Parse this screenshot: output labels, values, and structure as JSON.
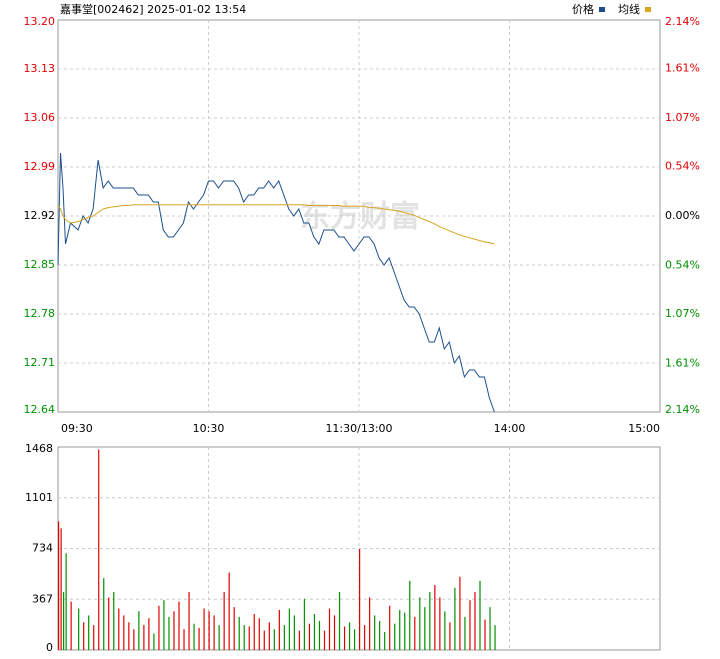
{
  "chart_data": [
    {
      "type": "line",
      "title": "嘉事堂[002462] 2025-01-02 13:54",
      "watermark": "东方财富",
      "x": [
        "09:30",
        "09:31",
        "09:32",
        "09:33",
        "09:35",
        "09:38",
        "09:40",
        "09:42",
        "09:44",
        "09:46",
        "09:48",
        "09:50",
        "09:52",
        "09:54",
        "09:56",
        "09:58",
        "10:00",
        "10:02",
        "10:04",
        "10:06",
        "10:08",
        "10:10",
        "10:12",
        "10:14",
        "10:16",
        "10:18",
        "10:20",
        "10:22",
        "10:24",
        "10:26",
        "10:28",
        "10:30",
        "10:32",
        "10:34",
        "10:36",
        "10:38",
        "10:40",
        "10:42",
        "10:44",
        "10:46",
        "10:48",
        "10:50",
        "10:52",
        "10:54",
        "10:56",
        "10:58",
        "11:00",
        "11:02",
        "11:04",
        "11:06",
        "11:08",
        "11:10",
        "11:12",
        "11:14",
        "11:16",
        "11:18",
        "11:20",
        "11:22",
        "11:24",
        "11:26",
        "11:28",
        "11:30",
        "13:02",
        "13:04",
        "13:06",
        "13:08",
        "13:10",
        "13:12",
        "13:14",
        "13:16",
        "13:18",
        "13:20",
        "13:22",
        "13:24",
        "13:26",
        "13:28",
        "13:30",
        "13:32",
        "13:34",
        "13:36",
        "13:38",
        "13:40",
        "13:42",
        "13:44",
        "13:46",
        "13:48",
        "13:50",
        "13:52",
        "13:54"
      ],
      "series": [
        {
          "name": "价格",
          "color": "#1b4f8c",
          "values": [
            12.85,
            13.01,
            12.96,
            12.88,
            12.91,
            12.9,
            12.92,
            12.91,
            12.93,
            13.0,
            12.96,
            12.97,
            12.96,
            12.96,
            12.96,
            12.96,
            12.96,
            12.95,
            12.95,
            12.95,
            12.94,
            12.94,
            12.9,
            12.89,
            12.89,
            12.9,
            12.91,
            12.94,
            12.93,
            12.94,
            12.95,
            12.97,
            12.97,
            12.96,
            12.97,
            12.97,
            12.97,
            12.96,
            12.94,
            12.95,
            12.95,
            12.96,
            12.96,
            12.97,
            12.96,
            12.97,
            12.95,
            12.93,
            12.92,
            12.93,
            12.91,
            12.91,
            12.89,
            12.88,
            12.9,
            12.9,
            12.9,
            12.89,
            12.89,
            12.88,
            12.87,
            12.88,
            12.89,
            12.89,
            12.88,
            12.86,
            12.85,
            12.86,
            12.84,
            12.82,
            12.8,
            12.79,
            12.79,
            12.78,
            12.76,
            12.74,
            12.74,
            12.76,
            12.73,
            12.74,
            12.71,
            12.72,
            12.69,
            12.7,
            12.7,
            12.69,
            12.69,
            12.66,
            12.64
          ]
        },
        {
          "name": "均线",
          "color": "#d9a520",
          "values": [
            12.935,
            12.93,
            12.92,
            12.915,
            12.91,
            12.912,
            12.915,
            12.918,
            12.92,
            12.925,
            12.93,
            12.932,
            12.933,
            12.934,
            12.935,
            12.935,
            12.936,
            12.936,
            12.936,
            12.936,
            12.936,
            12.936,
            12.936,
            12.936,
            12.936,
            12.936,
            12.936,
            12.936,
            12.936,
            12.936,
            12.936,
            12.936,
            12.936,
            12.936,
            12.936,
            12.936,
            12.936,
            12.936,
            12.936,
            12.936,
            12.936,
            12.936,
            12.936,
            12.936,
            12.936,
            12.936,
            12.936,
            12.936,
            12.936,
            12.936,
            12.936,
            12.935,
            12.935,
            12.935,
            12.935,
            12.935,
            12.935,
            12.935,
            12.934,
            12.934,
            12.934,
            12.934,
            12.934,
            12.932,
            12.932,
            12.931,
            12.93,
            12.929,
            12.928,
            12.927,
            12.925,
            12.923,
            12.921,
            12.918,
            12.915,
            12.912,
            12.909,
            12.905,
            12.902,
            12.899,
            12.896,
            12.893,
            12.891,
            12.889,
            12.887,
            12.885,
            12.883,
            12.882,
            12.88
          ]
        }
      ],
      "xlim": [
        "09:30",
        "15:00"
      ],
      "xticks": [
        "09:30",
        "10:30",
        "11:30/13:00",
        "14:00",
        "15:00"
      ],
      "ylim": [
        12.64,
        13.2
      ],
      "yticks": [
        12.64,
        12.71,
        12.78,
        12.85,
        12.92,
        12.99,
        13.06,
        13.13,
        {
          "value": 13.2,
          "label": "13.20"
        }
      ],
      "y2lim": [
        -2.14,
        2.14
      ],
      "y2ticks": [
        {
          "value": -2.14,
          "label": "2.14%"
        },
        {
          "value": -1.61,
          "label": "1.61%"
        },
        {
          "value": -1.07,
          "label": "1.07%"
        },
        {
          "value": -0.54,
          "label": "0.54%"
        },
        {
          "value": 0,
          "label": "0.00%"
        },
        {
          "value": 0.54,
          "label": "0.54%"
        },
        {
          "value": 1.07,
          "label": "1.07%"
        },
        {
          "value": 1.61,
          "label": "1.61%"
        },
        {
          "value": 2.14,
          "label": "2.14%"
        }
      ],
      "up_color": "#e00000",
      "down_color": "#009000",
      "grid": true,
      "legend": "top-right"
    },
    {
      "type": "bar",
      "x": [
        "09:30",
        "09:31",
        "09:32",
        "09:33",
        "09:35",
        "09:38",
        "09:40",
        "09:42",
        "09:44",
        "09:46",
        "09:48",
        "09:50",
        "09:52",
        "09:54",
        "09:56",
        "09:58",
        "10:00",
        "10:02",
        "10:04",
        "10:06",
        "10:08",
        "10:10",
        "10:12",
        "10:14",
        "10:16",
        "10:18",
        "10:20",
        "10:22",
        "10:24",
        "10:26",
        "10:28",
        "10:30",
        "10:32",
        "10:34",
        "10:36",
        "10:38",
        "10:40",
        "10:42",
        "10:44",
        "10:46",
        "10:48",
        "10:50",
        "10:52",
        "10:54",
        "10:56",
        "10:58",
        "11:00",
        "11:02",
        "11:04",
        "11:06",
        "11:08",
        "11:10",
        "11:12",
        "11:14",
        "11:16",
        "11:18",
        "11:20",
        "11:22",
        "11:24",
        "11:26",
        "11:28",
        "11:30",
        "13:02",
        "13:04",
        "13:06",
        "13:08",
        "13:10",
        "13:12",
        "13:14",
        "13:16",
        "13:18",
        "13:20",
        "13:22",
        "13:24",
        "13:26",
        "13:28",
        "13:30",
        "13:32",
        "13:34",
        "13:36",
        "13:38",
        "13:40",
        "13:42",
        "13:44",
        "13:46",
        "13:48",
        "13:50",
        "13:52",
        "13:54"
      ],
      "values": [
        930,
        880,
        420,
        700,
        350,
        300,
        200,
        250,
        180,
        1450,
        520,
        380,
        420,
        300,
        250,
        200,
        150,
        280,
        180,
        230,
        120,
        320,
        360,
        240,
        280,
        350,
        150,
        420,
        190,
        160,
        300,
        280,
        250,
        180,
        420,
        560,
        310,
        240,
        180,
        170,
        260,
        230,
        140,
        200,
        150,
        290,
        180,
        300,
        250,
        140,
        370,
        190,
        260,
        210,
        140,
        300,
        250,
        420,
        170,
        200,
        150,
        730,
        180,
        380,
        250,
        210,
        130,
        320,
        190,
        290,
        270,
        500,
        240,
        380,
        310,
        420,
        470,
        380,
        280,
        200,
        450,
        530,
        240,
        360,
        420,
        500,
        220,
        310,
        180
      ],
      "ylim": [
        0,
        1468
      ],
      "yticks": [
        0,
        367,
        734,
        1101,
        1468
      ],
      "up_color": "#e00000",
      "down_color": "#009000",
      "grid": true
    }
  ]
}
